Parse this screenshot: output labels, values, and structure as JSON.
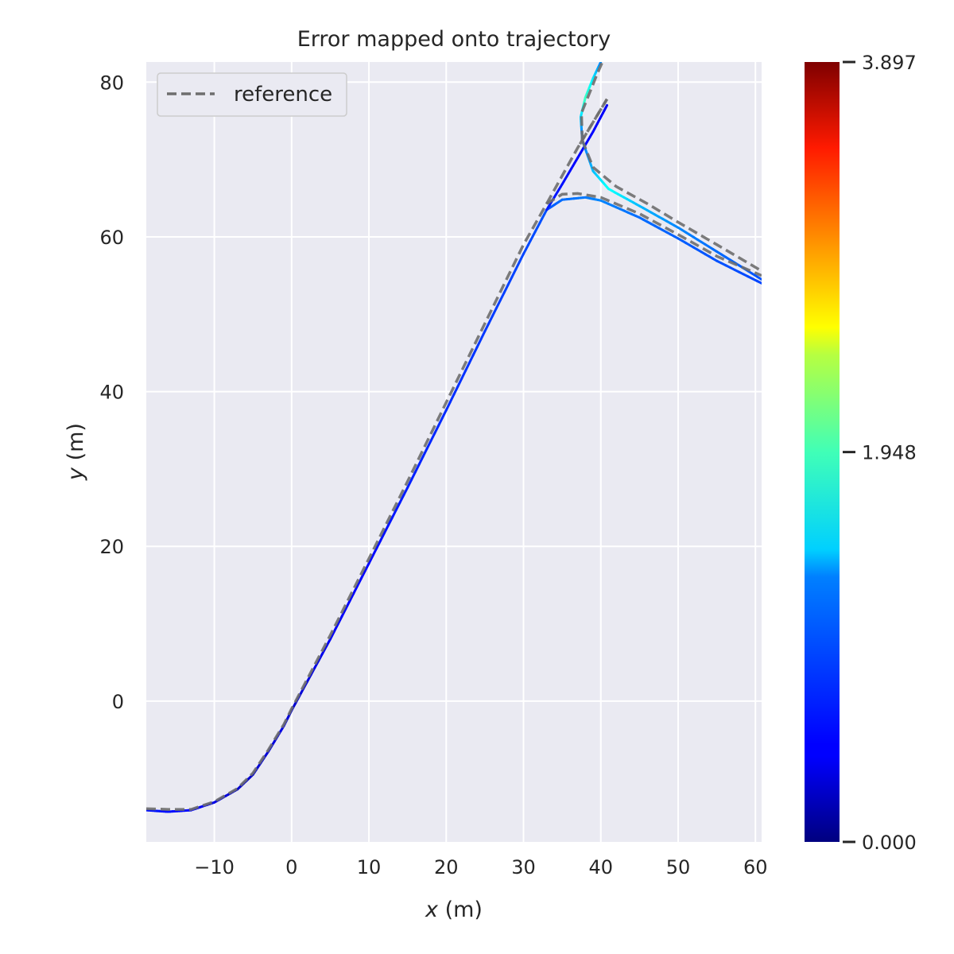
{
  "chart_data": {
    "type": "line",
    "title": "Error mapped onto trajectory",
    "xlabel": "x (m)",
    "ylabel": "y (m)",
    "xlim": [
      -18.8,
      60.8
    ],
    "ylim": [
      -18.2,
      82.6
    ],
    "xticks": [
      -10,
      0,
      10,
      20,
      30,
      40,
      50,
      60
    ],
    "yticks": [
      0,
      20,
      40,
      60,
      80
    ],
    "grid": true,
    "legend": {
      "placement": "top-left",
      "entries": [
        "reference"
      ]
    },
    "reference": {
      "name": "reference",
      "style": "dashed",
      "color": "#6e6e6e",
      "points": [
        [
          -18.8,
          -13.9
        ],
        [
          -16,
          -14.0
        ],
        [
          -13,
          -14.0
        ],
        [
          -10,
          -13.0
        ],
        [
          -7,
          -11.3
        ],
        [
          -5,
          -9.3
        ],
        [
          -3,
          -6.3
        ],
        [
          -1,
          -3.0
        ],
        [
          0,
          -1.0
        ],
        [
          5,
          8.5
        ],
        [
          10,
          18.4
        ],
        [
          15,
          28.4
        ],
        [
          20,
          38.6
        ],
        [
          25,
          48.8
        ],
        [
          30,
          59.0
        ],
        [
          33,
          64.3
        ],
        [
          35,
          65.5
        ],
        [
          37,
          65.6
        ],
        [
          40,
          65.1
        ],
        [
          45,
          63.0
        ],
        [
          50,
          60.3
        ],
        [
          55,
          57.5
        ],
        [
          60.8,
          55.0
        ],
        [
          33,
          64.3
        ],
        [
          37,
          71.5
        ],
        [
          40.8,
          77.8
        ],
        [
          40.8,
          77.8
        ],
        [
          37,
          71.5
        ],
        [
          37.6,
          72.5
        ],
        [
          37.5,
          76.0
        ],
        [
          38.5,
          78.5
        ],
        [
          39.5,
          81.0
        ],
        [
          40.2,
          82.6
        ],
        [
          37.6,
          72.5
        ],
        [
          39.0,
          69.0
        ],
        [
          42,
          66.5
        ],
        [
          46,
          64.3
        ],
        [
          50,
          61.9
        ],
        [
          55,
          59.0
        ],
        [
          60.8,
          55.6
        ]
      ]
    },
    "trajectory": {
      "colormap": "jet",
      "error_min": 0.0,
      "error_max": 3.897,
      "segments": [
        {
          "points": [
            [
              -18.8,
              -14.1
            ],
            [
              -16,
              -14.3
            ],
            [
              -13,
              -14.1
            ],
            [
              -10,
              -13.1
            ],
            [
              -7,
              -11.4
            ],
            [
              -5,
              -9.5
            ],
            [
              -3,
              -6.5
            ],
            [
              -1,
              -3.2
            ],
            [
              0,
              -1.2
            ],
            [
              5,
              8.0
            ],
            [
              10,
              17.8
            ],
            [
              15,
              27.6
            ],
            [
              20,
              37.6
            ],
            [
              25,
              47.8
            ],
            [
              30,
              57.8
            ],
            [
              33,
              63.5
            ],
            [
              35,
              64.8
            ],
            [
              38,
              65.1
            ],
            [
              40,
              64.7
            ],
            [
              45,
              62.5
            ],
            [
              50,
              59.8
            ],
            [
              55,
              56.9
            ],
            [
              60.8,
              54.0
            ]
          ],
          "error": [
            0.55,
            0.55,
            0.5,
            0.4,
            0.3,
            0.3,
            0.35,
            0.4,
            0.3,
            0.45,
            0.5,
            0.6,
            0.65,
            0.7,
            0.75,
            0.8,
            0.9,
            0.95,
            1.0,
            0.9,
            0.85,
            0.8,
            0.75
          ]
        },
        {
          "points": [
            [
              33,
              63.5
            ],
            [
              35,
              66.8
            ],
            [
              37,
              70.2
            ],
            [
              39,
              73.6
            ],
            [
              40.8,
              77.0
            ]
          ],
          "error": [
            0.6,
            0.55,
            0.5,
            0.5,
            0.45
          ]
        },
        {
          "points": [
            [
              37.6,
              72.5
            ],
            [
              37.4,
              75.5
            ],
            [
              38.0,
              78.0
            ],
            [
              39.0,
              80.5
            ],
            [
              40.0,
              82.6
            ]
          ],
          "error": [
            0.8,
            1.3,
            1.7,
            1.4,
            1.0
          ]
        },
        {
          "points": [
            [
              37.6,
              72.5
            ],
            [
              39.0,
              68.5
            ],
            [
              41,
              66.2
            ],
            [
              45,
              64.0
            ],
            [
              50,
              61.2
            ],
            [
              55,
              58.1
            ],
            [
              60.8,
              54.5
            ]
          ],
          "error": [
            0.9,
            1.2,
            1.5,
            1.2,
            1.0,
            0.9,
            0.8
          ]
        }
      ]
    },
    "colorbar": {
      "ticks": [
        0.0,
        1.948,
        3.897
      ],
      "tick_labels": [
        "0.000",
        "1.948",
        "3.897"
      ]
    }
  }
}
